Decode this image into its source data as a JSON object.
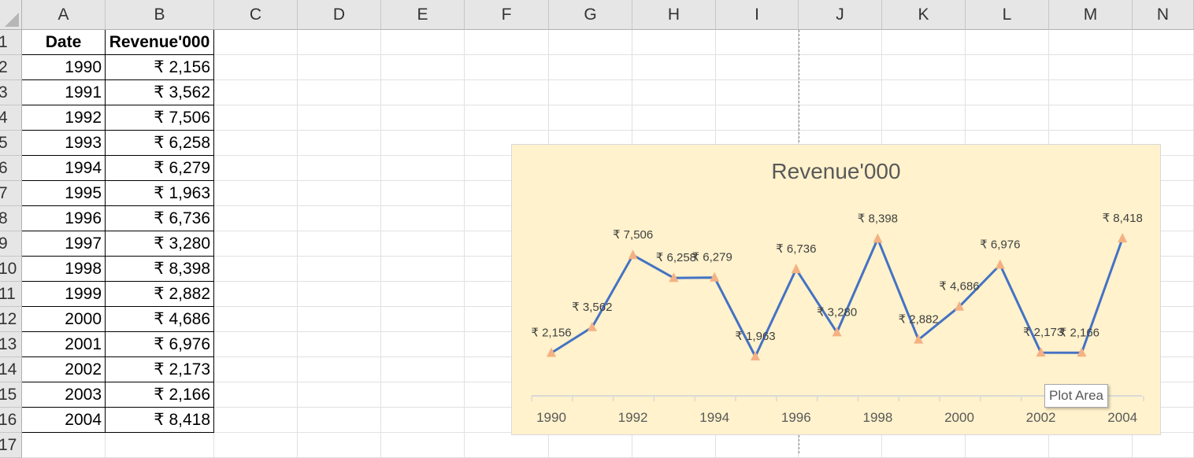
{
  "sheet": {
    "columns": [
      "A",
      "B",
      "C",
      "D",
      "E",
      "F",
      "G",
      "H",
      "I",
      "J",
      "K",
      "L",
      "M",
      "N"
    ],
    "rows": [
      "1",
      "2",
      "3",
      "4",
      "5",
      "6",
      "7",
      "8",
      "9",
      "10",
      "11",
      "12",
      "13",
      "14",
      "15",
      "16",
      "17"
    ],
    "header": {
      "date": "Date",
      "revenue": "Revenue'000"
    },
    "table": [
      {
        "date": "1990",
        "revenue": "₹ 2,156"
      },
      {
        "date": "1991",
        "revenue": "₹ 3,562"
      },
      {
        "date": "1992",
        "revenue": "₹ 7,506"
      },
      {
        "date": "1993",
        "revenue": "₹ 6,258"
      },
      {
        "date": "1994",
        "revenue": "₹ 6,279"
      },
      {
        "date": "1995",
        "revenue": "₹ 1,963"
      },
      {
        "date": "1996",
        "revenue": "₹ 6,736"
      },
      {
        "date": "1997",
        "revenue": "₹ 3,280"
      },
      {
        "date": "1998",
        "revenue": "₹ 8,398"
      },
      {
        "date": "1999",
        "revenue": "₹ 2,882"
      },
      {
        "date": "2000",
        "revenue": "₹ 4,686"
      },
      {
        "date": "2001",
        "revenue": "₹ 6,976"
      },
      {
        "date": "2002",
        "revenue": "₹ 2,173"
      },
      {
        "date": "2003",
        "revenue": "₹ 2,166"
      },
      {
        "date": "2004",
        "revenue": "₹ 8,418"
      }
    ]
  },
  "chart_data": {
    "type": "line",
    "title": "Revenue'000",
    "x": [
      1990,
      1991,
      1992,
      1993,
      1994,
      1995,
      1996,
      1997,
      1998,
      1999,
      2000,
      2001,
      2002,
      2003,
      2004
    ],
    "series": [
      {
        "values": [
          2156,
          3562,
          7506,
          6258,
          6279,
          1963,
          6736,
          3280,
          8398,
          2882,
          4686,
          6976,
          2173,
          2166,
          8418
        ],
        "labels": [
          "₹ 2,156",
          "₹ 3,562",
          "₹ 7,506",
          "₹ 6,258",
          "₹ 6,279",
          "₹ 1,963",
          "₹ 6,736",
          "₹ 3,280",
          "₹ 8,398",
          "₹ 2,882",
          "₹ 4,686",
          "₹ 6,976",
          "₹ 2,173",
          "₹ 2,166",
          "₹ 8,418"
        ],
        "color": "#4472c4",
        "marker": "triangle",
        "marker_color": "#f4b183"
      }
    ],
    "x_tick_labels": [
      "1990",
      "1992",
      "1994",
      "1996",
      "1998",
      "2000",
      "2002",
      "2004"
    ],
    "background": "#fff2cc",
    "legend": "none",
    "grid": false
  },
  "tooltip": {
    "text": "Plot Area"
  }
}
